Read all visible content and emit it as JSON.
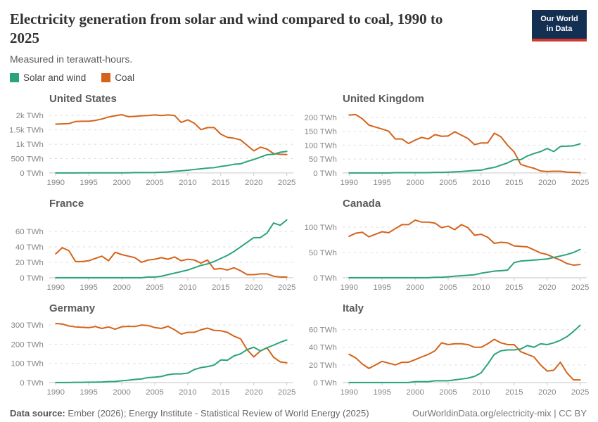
{
  "header": {
    "title": "Electricity generation from solar and wind compared to coal, 1990 to 2025",
    "subtitle": "Measured in terawatt-hours.",
    "logo": {
      "line1": "Our World",
      "line2": "in Data",
      "bg_color": "#132F52",
      "accent_color": "#D0392E"
    }
  },
  "legend": {
    "items": [
      {
        "label": "Solar and wind",
        "color": "#2AA37C"
      },
      {
        "label": "Coal",
        "color": "#D5631A"
      }
    ]
  },
  "footer": {
    "source_label": "Data source:",
    "source_text": " Ember (2026); Energy Institute - Statistical Review of World Energy (2025)",
    "right_text": "OurWorldinData.org/electricity-mix | CC BY"
  },
  "chart_data": {
    "type": "line",
    "title": "Electricity generation from solar and wind compared to coal, 1990 to 2025",
    "ylabel_unit": "TWh",
    "grid": "dashed-horizontal",
    "legend_position": "top-left",
    "colors": {
      "solar_wind": "#2AA37C",
      "coal": "#D5631A"
    },
    "x_domain": [
      1989,
      2026
    ],
    "x_ticks": [
      1990,
      1995,
      2000,
      2005,
      2010,
      2015,
      2020,
      2025
    ],
    "x": [
      1990,
      1991,
      1992,
      1993,
      1994,
      1995,
      1996,
      1997,
      1998,
      1999,
      2000,
      2001,
      2002,
      2003,
      2004,
      2005,
      2006,
      2007,
      2008,
      2009,
      2010,
      2011,
      2012,
      2013,
      2014,
      2015,
      2016,
      2017,
      2018,
      2019,
      2020,
      2021,
      2022,
      2023,
      2024,
      2025
    ],
    "panels": [
      {
        "title": "United States",
        "ymax": 2150,
        "yticks": [
          0,
          500,
          1000,
          1500,
          2000
        ],
        "ytick_labels": [
          "0 TWh",
          "500 TWh",
          "1k TWh",
          "1.5k TWh",
          "2k TWh"
        ],
        "coal": [
          1700,
          1710,
          1720,
          1790,
          1800,
          1800,
          1830,
          1880,
          1950,
          1990,
          2030,
          1960,
          1970,
          1990,
          2000,
          2020,
          2000,
          2020,
          2000,
          1760,
          1850,
          1730,
          1510,
          1580,
          1580,
          1350,
          1240,
          1210,
          1150,
          960,
          770,
          900,
          830,
          675,
          650,
          640
        ],
        "solar_wind": [
          3,
          3,
          3,
          3,
          4,
          4,
          4,
          4,
          4,
          5,
          6,
          7,
          11,
          12,
          15,
          18,
          27,
          35,
          58,
          75,
          96,
          122,
          143,
          172,
          184,
          227,
          257,
          304,
          321,
          400,
          470,
          550,
          635,
          650,
          720,
          750
        ]
      },
      {
        "title": "United Kingdom",
        "ymax": 222,
        "yticks": [
          0,
          50,
          100,
          150,
          200
        ],
        "ytick_labels": [
          "0 TWh",
          "50 TWh",
          "100 TWh",
          "150 TWh",
          "200 TWh"
        ],
        "coal": [
          208,
          210,
          195,
          172,
          165,
          158,
          150,
          122,
          122,
          106,
          118,
          128,
          122,
          138,
          132,
          133,
          148,
          136,
          124,
          102,
          108,
          108,
          143,
          130,
          100,
          76,
          31,
          23,
          17,
          7,
          5,
          6,
          6,
          3,
          2,
          1
        ],
        "solar_wind": [
          0,
          0,
          0,
          0,
          0,
          0,
          0,
          1,
          1,
          1,
          1,
          1,
          1,
          2,
          2,
          3,
          4,
          5,
          7,
          9,
          10,
          16,
          20,
          28,
          36,
          48,
          48,
          61,
          70,
          77,
          88,
          77,
          95,
          96,
          98,
          105
        ]
      },
      {
        "title": "France",
        "ymax": 80,
        "yticks": [
          0,
          20,
          40,
          60
        ],
        "ytick_labels": [
          "0 TWh",
          "20 TWh",
          "40 TWh",
          "60 TWh"
        ],
        "coal": [
          31,
          39,
          35,
          21,
          21,
          22,
          25,
          28,
          22,
          33,
          30,
          28,
          26,
          20,
          23,
          24,
          26,
          24,
          27,
          22,
          24,
          23,
          19,
          23,
          11,
          12,
          10,
          13,
          9,
          4,
          4,
          5,
          5,
          2,
          1,
          1
        ],
        "solar_wind": [
          0,
          0,
          0,
          0,
          0,
          0,
          0,
          0,
          0,
          0,
          0,
          0,
          0,
          0,
          1,
          1,
          2,
          4,
          6,
          8,
          10,
          13,
          16,
          18,
          21,
          25,
          29,
          34,
          40,
          46,
          52,
          52,
          58,
          71,
          68,
          75
        ]
      },
      {
        "title": "Canada",
        "ymax": 122,
        "yticks": [
          0,
          50,
          100
        ],
        "ytick_labels": [
          "0 TWh",
          "50 TWh",
          "100 TWh"
        ],
        "coal": [
          82,
          88,
          90,
          81,
          86,
          91,
          89,
          97,
          105,
          105,
          114,
          110,
          110,
          108,
          99,
          102,
          95,
          105,
          99,
          84,
          86,
          80,
          68,
          70,
          69,
          63,
          62,
          61,
          55,
          49,
          46,
          40,
          35,
          28,
          25,
          26
        ],
        "solar_wind": [
          0,
          0,
          0,
          0,
          0,
          0,
          0,
          0,
          0,
          0,
          0,
          0,
          0,
          1,
          1,
          2,
          3,
          4,
          5,
          6,
          9,
          11,
          13,
          14,
          15,
          30,
          33,
          34,
          35,
          36,
          37,
          40,
          43,
          46,
          50,
          56
        ]
      },
      {
        "title": "Germany",
        "ymax": 322,
        "yticks": [
          0,
          100,
          200,
          300
        ],
        "ytick_labels": [
          "0 TWh",
          "100 TWh",
          "200 TWh",
          "300 TWh"
        ],
        "coal": [
          308,
          305,
          295,
          290,
          288,
          286,
          292,
          282,
          290,
          278,
          291,
          293,
          292,
          300,
          297,
          287,
          282,
          293,
          275,
          253,
          262,
          262,
          275,
          284,
          272,
          270,
          262,
          242,
          228,
          171,
          134,
          165,
          181,
          132,
          108,
          103
        ],
        "solar_wind": [
          0,
          0,
          0,
          1,
          1,
          2,
          2,
          3,
          5,
          6,
          9,
          12,
          16,
          19,
          26,
          28,
          32,
          41,
          45,
          45,
          49,
          68,
          78,
          83,
          91,
          118,
          116,
          139,
          150,
          172,
          184,
          165,
          182,
          195,
          210,
          222
        ]
      },
      {
        "title": "Italy",
        "ymax": 70,
        "yticks": [
          0,
          20,
          40,
          60
        ],
        "ytick_labels": [
          "0 TWh",
          "20 TWh",
          "40 TWh",
          "60 TWh"
        ],
        "coal": [
          32,
          28,
          21,
          16,
          20,
          24,
          22,
          20,
          23,
          23,
          26,
          29,
          32,
          36,
          45,
          43,
          44,
          44,
          43,
          40,
          40,
          44,
          49,
          45,
          43,
          43,
          35,
          32,
          29,
          20,
          13,
          14,
          23,
          11,
          3,
          3
        ],
        "solar_wind": [
          0,
          0,
          0,
          0,
          0,
          0,
          0,
          0,
          0,
          0,
          1,
          1,
          1,
          2,
          2,
          2,
          3,
          4,
          5,
          7,
          11,
          21,
          32,
          36,
          37,
          37,
          38,
          42,
          40,
          44,
          43,
          45,
          48,
          52,
          58,
          65
        ]
      }
    ]
  }
}
